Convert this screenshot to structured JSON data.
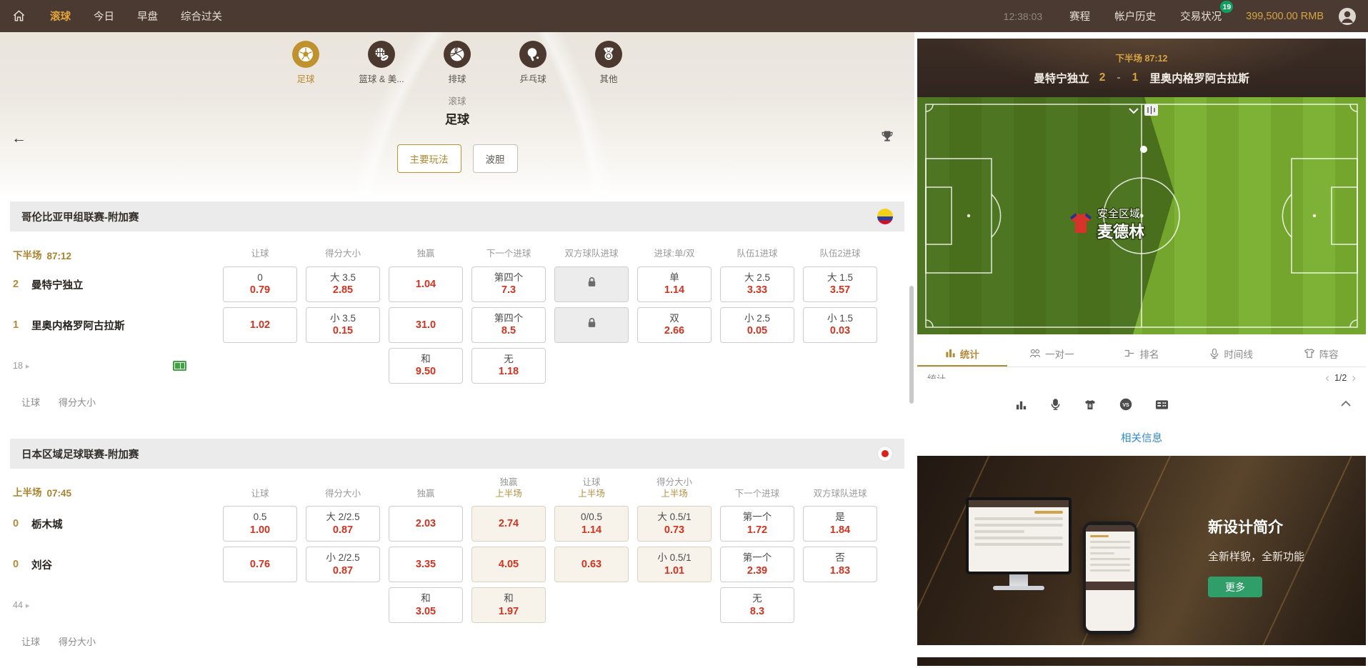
{
  "icons": {
    "back": "←",
    "more_arrow": "▸",
    "prev": "‹",
    "next": "›"
  },
  "colors": {
    "accent_gold": "#c0922f",
    "odds_red": "#d3321f",
    "badge_green": "#0fa05f",
    "link_blue": "#2f8ccc",
    "button_green": "#2f9e68",
    "nav_brown": "#4a3a31"
  },
  "nav": {
    "items": [
      "滚球",
      "今日",
      "早盘",
      "综合过关"
    ],
    "active_item": "滚球",
    "time": "12:38:03",
    "links": [
      "赛程",
      "帐户历史",
      "交易状况"
    ],
    "badge": "19",
    "balance": "399,500.00 RMB"
  },
  "sports_tabs": [
    {
      "label": "足球",
      "icon": "soccer",
      "active": true
    },
    {
      "label": "篮球 & 美...",
      "icon": "basketball-football",
      "active": false
    },
    {
      "label": "排球",
      "icon": "volleyball",
      "active": false
    },
    {
      "label": "乒乓球",
      "icon": "table-tennis",
      "active": false
    },
    {
      "label": "其他",
      "icon": "medal",
      "active": false
    }
  ],
  "page_header": {
    "category": "滚球",
    "title": "足球"
  },
  "filters": [
    {
      "label": "主要玩法",
      "active": true
    },
    {
      "label": "波胆",
      "active": false
    }
  ],
  "leagues": [
    {
      "name": "哥伦比亚甲组联赛-附加赛",
      "flag": "colombia",
      "period": "下半场",
      "clock": "87:12",
      "highlight_cols": [],
      "columns": [
        {
          "label": "让球"
        },
        {
          "label": "得分大小"
        },
        {
          "label": "独赢"
        },
        {
          "label": "下一个进球"
        },
        {
          "label": "双方球队进球"
        },
        {
          "label": "进球:单/双"
        },
        {
          "label": "队伍1进球"
        },
        {
          "label": "队伍2进球"
        }
      ],
      "rows": [
        {
          "score": "2",
          "team": "曼特宁独立",
          "cells": [
            {
              "l": "0",
              "v": "0.79"
            },
            {
              "l": "大 3.5",
              "v": "2.85"
            },
            {
              "v": "1.04"
            },
            {
              "l": "第四个",
              "v": "7.3"
            },
            {
              "lock": true
            },
            {
              "l": "单",
              "v": "1.14"
            },
            {
              "l": "大 2.5",
              "v": "3.33"
            },
            {
              "l": "大 1.5",
              "v": "3.57"
            }
          ]
        },
        {
          "score": "1",
          "team": "里奥内格罗阿古拉斯",
          "cells": [
            {
              "v": "1.02"
            },
            {
              "l": "小 3.5",
              "v": "0.15"
            },
            {
              "v": "31.0"
            },
            {
              "l": "第四个",
              "v": "8.5"
            },
            {
              "lock": true
            },
            {
              "l": "双",
              "v": "2.66"
            },
            {
              "l": "小 2.5",
              "v": "0.05"
            },
            {
              "l": "小 1.5",
              "v": "0.03"
            }
          ]
        }
      ],
      "extra_row": {
        "more": "18",
        "pitch_icon": true,
        "cells": [
          {
            "col": 2,
            "l": "和",
            "v": "9.50"
          },
          {
            "col": 3,
            "l": "无",
            "v": "1.18"
          }
        ]
      },
      "footer_links": [
        "让球",
        "得分大小"
      ]
    },
    {
      "name": "日本区域足球联赛-附加赛",
      "flag": "japan",
      "period": "上半场",
      "clock": "07:45",
      "highlight_cols": [
        3,
        4,
        5
      ],
      "columns": [
        {
          "label": "让球"
        },
        {
          "label": "得分大小"
        },
        {
          "label": "独赢"
        },
        {
          "label": "独赢",
          "sub": "上半场"
        },
        {
          "label": "让球",
          "sub": "上半场"
        },
        {
          "label": "得分大小",
          "sub": "上半场"
        },
        {
          "label": "下一个进球"
        },
        {
          "label": "双方球队进球"
        }
      ],
      "rows": [
        {
          "score": "0",
          "team": "栃木城",
          "cells": [
            {
              "l": "0.5",
              "v": "1.00"
            },
            {
              "l": "大 2/2.5",
              "v": "0.87"
            },
            {
              "v": "2.03"
            },
            {
              "v": "2.74"
            },
            {
              "l": "0/0.5",
              "v": "1.14"
            },
            {
              "l": "大 0.5/1",
              "v": "0.73"
            },
            {
              "l": "第一个",
              "v": "1.72"
            },
            {
              "l": "是",
              "v": "1.84"
            }
          ]
        },
        {
          "score": "0",
          "team": "刘谷",
          "cells": [
            {
              "v": "0.76"
            },
            {
              "l": "小 2/2.5",
              "v": "0.87"
            },
            {
              "v": "3.35"
            },
            {
              "v": "4.05"
            },
            {
              "v": "0.63"
            },
            {
              "l": "小 0.5/1",
              "v": "1.01"
            },
            {
              "l": "第一个",
              "v": "2.39"
            },
            {
              "l": "否",
              "v": "1.83"
            }
          ]
        }
      ],
      "extra_row": {
        "more": "44",
        "pitch_icon": false,
        "cells": [
          {
            "col": 2,
            "l": "和",
            "v": "3.05"
          },
          {
            "col": 3,
            "l": "和",
            "v": "1.97"
          },
          {
            "col": 6,
            "l": "无",
            "v": "8.3"
          }
        ]
      },
      "footer_links": [
        "让球",
        "得分大小"
      ]
    }
  ],
  "right_panel": {
    "match_header": {
      "period": "下半场",
      "clock": "87:12",
      "home": "曼特宁独立",
      "home_score": "2",
      "separator": "-",
      "away_score": "1",
      "away": "里奥内格罗阿古拉斯"
    },
    "pitch": {
      "zone_label": "安全区域",
      "zone_team": "麦德林"
    },
    "tabs": [
      {
        "label": "统计",
        "active": true
      },
      {
        "label": "一对一",
        "active": false
      },
      {
        "label": "排名",
        "active": false
      },
      {
        "label": "时间线",
        "active": false
      },
      {
        "label": "阵容",
        "active": false
      }
    ],
    "section_label": "统计",
    "pagination": {
      "display": "1/2"
    },
    "related_link": "相关信息",
    "promo": {
      "title": "新设计简介",
      "subtitle": "全新样貌，全新功能",
      "button": "更多"
    }
  }
}
